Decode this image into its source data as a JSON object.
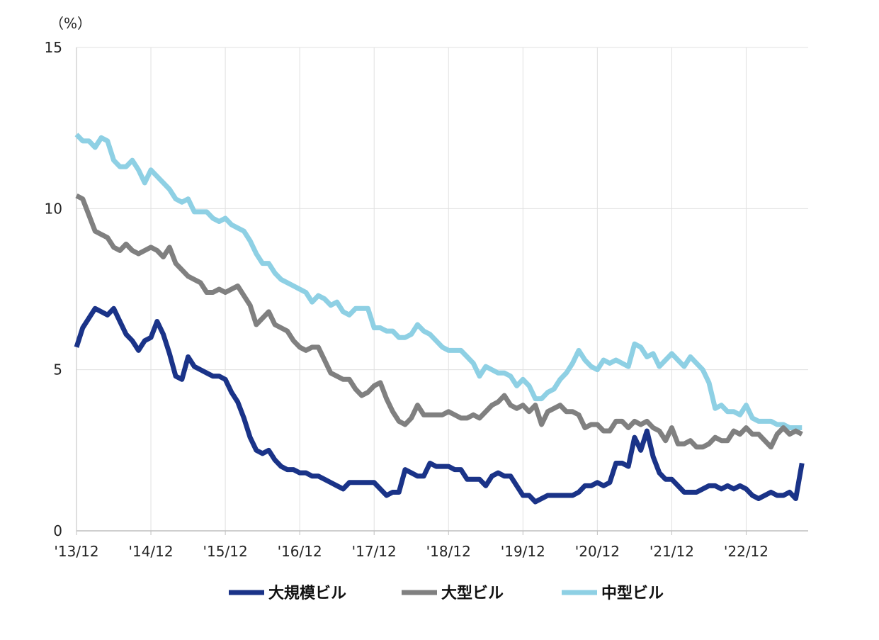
{
  "chart_data": {
    "type": "line",
    "unit_label": "（%）",
    "ylim": [
      0,
      15
    ],
    "y_ticks": [
      0,
      5,
      10,
      15
    ],
    "y_tick_labels": [
      "0",
      "5",
      "10",
      "15"
    ],
    "x_ticks": [
      0,
      12,
      24,
      36,
      48,
      60,
      72,
      84,
      96,
      108
    ],
    "x_tick_labels": [
      "'13/12",
      "'14/12",
      "'15/12",
      "'16/12",
      "'17/12",
      "'18/12",
      "'19/12",
      "'20/12",
      "'21/12",
      "'22/12"
    ],
    "x_range": [
      0,
      118
    ],
    "grid": "vertical and horizontal",
    "legend_position": "bottom",
    "colors": {
      "large_scale": "#1A3388",
      "large": "#808080",
      "mid": "#8ED0E4",
      "grid": "#E0E0E0",
      "axis": "#BFBFBF"
    },
    "series": [
      {
        "name": "大規模ビル",
        "color": "#1A3388",
        "values": [
          5.7,
          6.3,
          6.6,
          6.9,
          6.8,
          6.7,
          6.9,
          6.5,
          6.1,
          5.9,
          5.6,
          5.9,
          6.0,
          6.5,
          6.1,
          5.5,
          4.8,
          4.7,
          5.4,
          5.1,
          5.0,
          4.9,
          4.8,
          4.8,
          4.7,
          4.3,
          4.0,
          3.5,
          2.9,
          2.5,
          2.4,
          2.5,
          2.2,
          2.0,
          1.9,
          1.9,
          1.8,
          1.8,
          1.7,
          1.7,
          1.6,
          1.5,
          1.4,
          1.3,
          1.5,
          1.5,
          1.5,
          1.5,
          1.5,
          1.3,
          1.1,
          1.2,
          1.2,
          1.9,
          1.8,
          1.7,
          1.7,
          2.1,
          2.0,
          2.0,
          2.0,
          1.9,
          1.9,
          1.6,
          1.6,
          1.6,
          1.4,
          1.7,
          1.8,
          1.7,
          1.7,
          1.4,
          1.1,
          1.1,
          0.9,
          1.0,
          1.1,
          1.1,
          1.1,
          1.1,
          1.1,
          1.2,
          1.4,
          1.4,
          1.5,
          1.4,
          1.5,
          2.1,
          2.1,
          2.0,
          2.9,
          2.5,
          3.1,
          2.3,
          1.8,
          1.6,
          1.6,
          1.4,
          1.2,
          1.2,
          1.2,
          1.3,
          1.4,
          1.4,
          1.3,
          1.4,
          1.3,
          1.4,
          1.3,
          1.1,
          1.0,
          1.1,
          1.2,
          1.1,
          1.1,
          1.2,
          1.0,
          2.1
        ]
      },
      {
        "name": "大型ビル",
        "color": "#808080",
        "values": [
          10.4,
          10.3,
          9.8,
          9.3,
          9.2,
          9.1,
          8.8,
          8.7,
          8.9,
          8.7,
          8.6,
          8.7,
          8.8,
          8.7,
          8.5,
          8.8,
          8.3,
          8.1,
          7.9,
          7.8,
          7.7,
          7.4,
          7.4,
          7.5,
          7.4,
          7.5,
          7.6,
          7.3,
          7.0,
          6.4,
          6.6,
          6.8,
          6.4,
          6.3,
          6.2,
          5.9,
          5.7,
          5.6,
          5.7,
          5.7,
          5.3,
          4.9,
          4.8,
          4.7,
          4.7,
          4.4,
          4.2,
          4.3,
          4.5,
          4.6,
          4.1,
          3.7,
          3.4,
          3.3,
          3.5,
          3.9,
          3.6,
          3.6,
          3.6,
          3.6,
          3.7,
          3.6,
          3.5,
          3.5,
          3.6,
          3.5,
          3.7,
          3.9,
          4.0,
          4.2,
          3.9,
          3.8,
          3.9,
          3.7,
          3.9,
          3.3,
          3.7,
          3.8,
          3.9,
          3.7,
          3.7,
          3.6,
          3.2,
          3.3,
          3.3,
          3.1,
          3.1,
          3.4,
          3.4,
          3.2,
          3.4,
          3.3,
          3.4,
          3.2,
          3.1,
          2.8,
          3.2,
          2.7,
          2.7,
          2.8,
          2.6,
          2.6,
          2.7,
          2.9,
          2.8,
          2.8,
          3.1,
          3.0,
          3.2,
          3.0,
          3.0,
          2.8,
          2.6,
          3.0,
          3.2,
          3.0,
          3.1,
          3.0
        ]
      },
      {
        "name": "中型ビル",
        "color": "#8ED0E4",
        "values": [
          12.3,
          12.1,
          12.1,
          11.9,
          12.2,
          12.1,
          11.5,
          11.3,
          11.3,
          11.5,
          11.2,
          10.8,
          11.2,
          11.0,
          10.8,
          10.6,
          10.3,
          10.2,
          10.3,
          9.9,
          9.9,
          9.9,
          9.7,
          9.6,
          9.7,
          9.5,
          9.4,
          9.3,
          9.0,
          8.6,
          8.3,
          8.3,
          8.0,
          7.8,
          7.7,
          7.6,
          7.5,
          7.4,
          7.1,
          7.3,
          7.2,
          7.0,
          7.1,
          6.8,
          6.7,
          6.9,
          6.9,
          6.9,
          6.3,
          6.3,
          6.2,
          6.2,
          6.0,
          6.0,
          6.1,
          6.4,
          6.2,
          6.1,
          5.9,
          5.7,
          5.6,
          5.6,
          5.6,
          5.4,
          5.2,
          4.8,
          5.1,
          5.0,
          4.9,
          4.9,
          4.8,
          4.5,
          4.7,
          4.5,
          4.1,
          4.1,
          4.3,
          4.4,
          4.7,
          4.9,
          5.2,
          5.6,
          5.3,
          5.1,
          5.0,
          5.3,
          5.2,
          5.3,
          5.2,
          5.1,
          5.8,
          5.7,
          5.4,
          5.5,
          5.1,
          5.3,
          5.5,
          5.3,
          5.1,
          5.4,
          5.2,
          5.0,
          4.6,
          3.8,
          3.9,
          3.7,
          3.7,
          3.6,
          3.9,
          3.5,
          3.4,
          3.4,
          3.4,
          3.3,
          3.3,
          3.2,
          3.2,
          3.2
        ]
      }
    ]
  }
}
